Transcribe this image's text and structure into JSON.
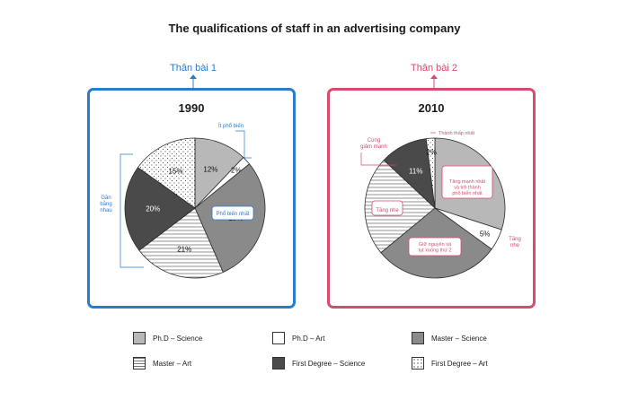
{
  "title": "The qualifications of staff in an advertising company",
  "sections": {
    "first": "Thân bài 1",
    "second": "Thân bài 2"
  },
  "chart_data": [
    {
      "type": "pie",
      "title": "1990",
      "slices": [
        {
          "name": "Ph.D – Science",
          "value": 12,
          "label": "12%"
        },
        {
          "name": "Ph.D – Art",
          "value": 2,
          "label": "2%"
        },
        {
          "name": "Master – Science",
          "value": 29,
          "label": "29%"
        },
        {
          "name": "Master – Art",
          "value": 21,
          "label": "21%"
        },
        {
          "name": "First Degree – Science",
          "value": 20,
          "label": "20%"
        },
        {
          "name": "First Degree – Art",
          "value": 15,
          "label": "15%"
        }
      ],
      "annotations": [
        "Ít phổ biến",
        "Phổ biến nhất",
        "Gần bằng nhau"
      ]
    },
    {
      "type": "pie",
      "title": "2010",
      "slices": [
        {
          "name": "Ph.D – Science",
          "value": 30,
          "label": "30%"
        },
        {
          "name": "Ph.D – Art",
          "value": 5,
          "label": "5%"
        },
        {
          "name": "Master – Science",
          "value": 29,
          "label": "29%"
        },
        {
          "name": "Master – Art",
          "value": 23,
          "label": "23%"
        },
        {
          "name": "First Degree – Science",
          "value": 11,
          "label": "11%"
        },
        {
          "name": "First Degree – Art",
          "value": 2,
          "label": "2%"
        }
      ],
      "annotations": [
        "Thành thấp nhất",
        "Cùng giảm mạnh",
        "Tăng mạnh nhất và trở thành phổ biến nhất",
        "Tăng nhẹ",
        "Tăng nhẹ",
        "Giữ nguyên và tụt xuống thứ 2"
      ]
    }
  ],
  "legend": [
    {
      "label": "Ph.D – Science",
      "pattern": "light-gray"
    },
    {
      "label": "Ph.D – Art",
      "pattern": "white"
    },
    {
      "label": "Master – Science",
      "pattern": "mid-gray"
    },
    {
      "label": "Master – Art",
      "pattern": "horizontal-lines"
    },
    {
      "label": "First Degree – Science",
      "pattern": "dark-gray"
    },
    {
      "label": "First Degree – Art",
      "pattern": "dots"
    }
  ],
  "colors": {
    "blue": "#2a7bd0",
    "pink": "#d84a6e",
    "phd_science": "#b8b8b8",
    "phd_art": "#ffffff",
    "master_science": "#8a8a8a",
    "first_degree_science": "#4a4a4a"
  }
}
